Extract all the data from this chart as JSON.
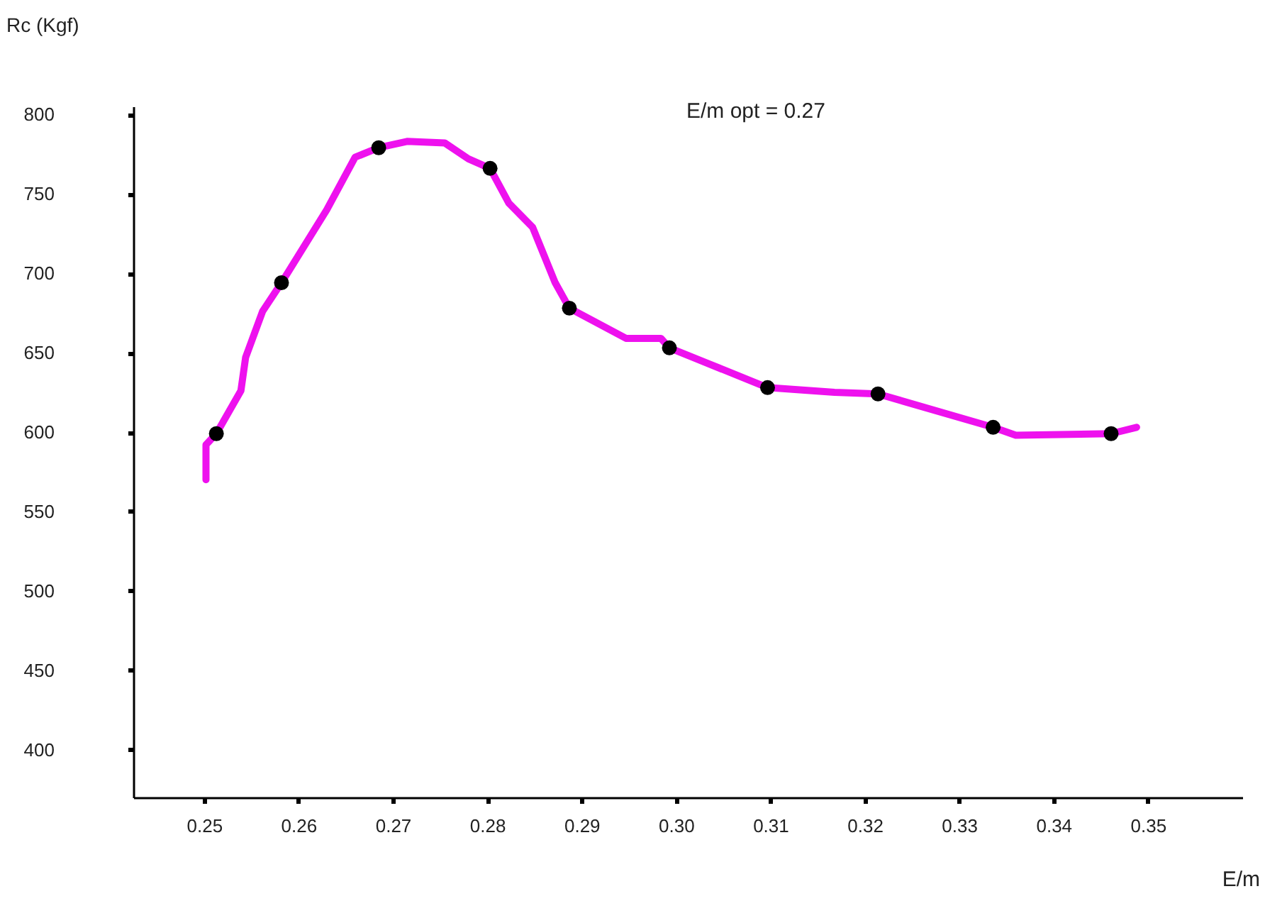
{
  "chart_data": {
    "type": "line",
    "xlabel": "E/m",
    "ylabel": "Rc  (Kgf)",
    "annotations": [
      "E/m  opt = 0.27"
    ],
    "xlim": [
      0.2425,
      0.36
    ],
    "ylim": [
      370,
      805
    ],
    "xticks": [
      0.25,
      0.26,
      0.27,
      0.28,
      0.29,
      {
        "value": 0.3,
        "label": "0.30"
      },
      0.31,
      0.32,
      0.33,
      0.34,
      0.35
    ],
    "yticks": [
      400,
      450,
      500,
      550,
      600,
      650,
      700,
      750,
      800
    ],
    "grid": false,
    "series": [
      {
        "type": "line",
        "color": "#ee11ee",
        "marker": "none",
        "line_style": "solid",
        "x": [
          0.2502,
          0.2502,
          0.2513,
          0.2539,
          0.2544,
          0.2562,
          0.2582,
          0.263,
          0.266,
          0.2685,
          0.2715,
          0.2755,
          0.278,
          0.2803,
          0.2823,
          0.2848,
          0.2872,
          0.2887,
          0.2947,
          0.2984,
          0.2993,
          0.3097,
          0.3168,
          0.3214,
          0.3336,
          0.336,
          0.3461,
          0.3488
        ],
        "values": [
          570,
          592,
          599,
          626,
          647,
          676,
          694,
          740,
          773,
          779,
          783,
          782,
          772,
          766,
          744,
          729,
          694,
          678,
          659,
          659,
          653,
          628,
          625,
          624,
          603,
          598,
          599,
          603
        ]
      },
      {
        "type": "scatter",
        "color": "#000000",
        "marker": "circle",
        "x": [
          0.2513,
          0.2582,
          0.2685,
          0.2803,
          0.2887,
          0.2993,
          0.3097,
          0.3214,
          0.3336,
          0.3461
        ],
        "values": [
          599,
          694,
          779,
          766,
          678,
          653,
          628,
          624,
          603,
          599
        ]
      }
    ]
  }
}
